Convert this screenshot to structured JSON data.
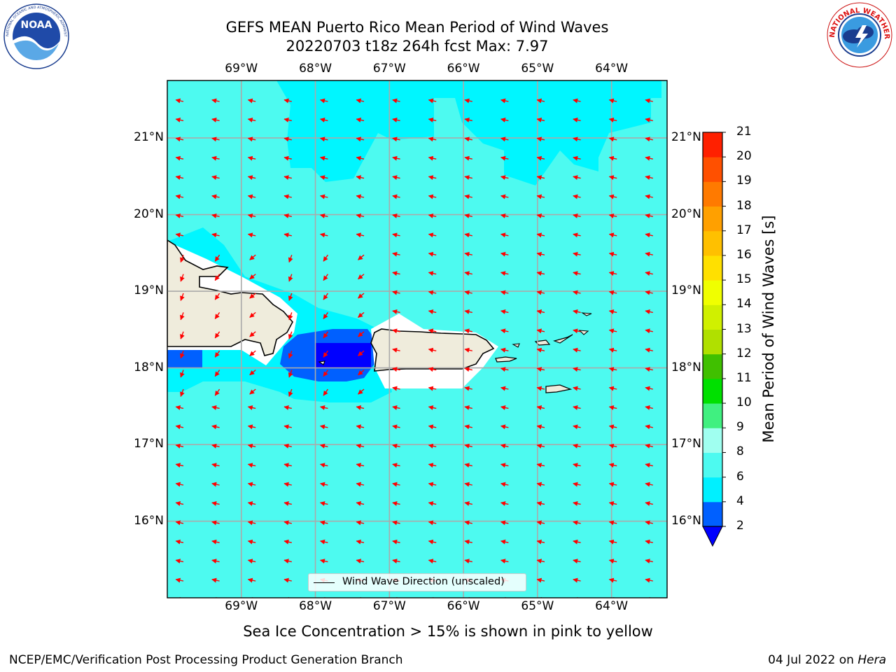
{
  "header": {
    "title_line1": "GEFS MEAN Puerto Rico Mean Period of Wind Waves",
    "title_line2": "20220703 t18z 264h fcst   Max: 7.97"
  },
  "logos": {
    "left": {
      "name": "noaa-logo",
      "text": "NOAA",
      "ring_text": "NATIONAL OCEANIC AND ATMOSPHERIC ADMINISTRATION · U.S. DEPARTMENT OF COMMERCE"
    },
    "right": {
      "name": "nws-logo",
      "ring_text": "NATIONAL WEATHER SERVICE"
    }
  },
  "map": {
    "longitude_labels": [
      "69°W",
      "68°W",
      "67°W",
      "66°W",
      "65°W",
      "64°W"
    ],
    "latitude_labels": [
      "21°N",
      "20°N",
      "19°N",
      "18°N",
      "17°N",
      "16°N"
    ],
    "longitudes": [
      -69,
      -68,
      -67,
      -66,
      -65,
      -64
    ],
    "latitudes": [
      21,
      20,
      19,
      18,
      17,
      16
    ],
    "extent": {
      "lon_min": -70,
      "lon_max": -63.25,
      "lat_min": 15.0,
      "lat_max": 21.75
    },
    "ocean_color": "#4dfaf0",
    "wave_arrow_color": "#ff0000",
    "land_color": "#efecdc",
    "legend_label": "Wind Wave Direction (unscaled)"
  },
  "colorbar": {
    "title": "Mean Period of Wind Waves [s]",
    "ticks": [
      "2",
      "4",
      "6",
      "8",
      "9",
      "10",
      "11",
      "12",
      "13",
      "14",
      "15",
      "16",
      "17",
      "18",
      "19",
      "20",
      "21"
    ],
    "colors": [
      "#0060ff",
      "#00f0ff",
      "#4dfaf0",
      "#a0fff0",
      "#40f080",
      "#00e000",
      "#40c000",
      "#b0e000",
      "#d0f000",
      "#f0ff00",
      "#ffe000",
      "#ffc000",
      "#ffa000",
      "#ff7a00",
      "#ff5000",
      "#ff2000",
      "#ff0000"
    ],
    "under_color": "#0000ff"
  },
  "bottom_note": "Sea Ice Concentration > 15% is shown in pink to yellow",
  "footer": {
    "left": "NCEP/EMC/Verification Post Processing Product Generation Branch",
    "date": "04 Jul 2022 on ",
    "host": "Hera"
  }
}
